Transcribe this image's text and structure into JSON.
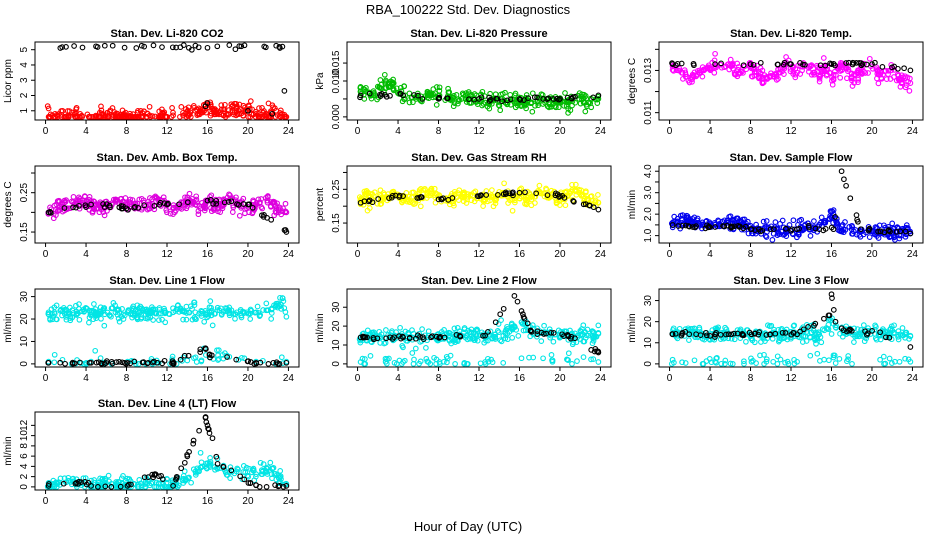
{
  "figure": {
    "title": "RBA_100222  Std. Dev. Diagnostics",
    "xlabel": "Hour of Day (UTC)"
  },
  "chart_data": [
    {
      "type": "scatter",
      "title": "Stan. Dev. Li-820 CO2",
      "ylabel": "Licor ppm",
      "xlim": [
        0,
        24
      ],
      "ylim": [
        0.6,
        5.3
      ],
      "xticks": [
        0,
        4,
        8,
        12,
        16,
        20,
        24
      ],
      "yticks": [
        1,
        2,
        3,
        4,
        5
      ],
      "series": [
        {
          "color": "#ff0000",
          "n": 300,
          "x_points": [
            0.3,
            1.6,
            2.3,
            3.4,
            4.5,
            5.8,
            6.9,
            8.1,
            9.2,
            10.3,
            11.5,
            12.6,
            13.8,
            14.3,
            14.8,
            15.3,
            15.8,
            16.2,
            16.6,
            17.2,
            18.0,
            18.9,
            19.9,
            20.8,
            21.9,
            22.8,
            23.8
          ],
          "y_points": [
            0.6,
            0.6,
            0.6,
            0.6,
            0.6,
            0.6,
            0.6,
            0.6,
            0.6,
            0.7,
            0.7,
            0.7,
            0.8,
            0.9,
            1.0,
            1.1,
            1.3,
            1.2,
            1.0,
            0.9,
            0.8,
            1.2,
            1.0,
            0.8,
            0.7,
            1.0,
            0.6
          ]
        },
        {
          "color": "#000000",
          "n": 35,
          "x_points": [
            23.4,
            23.6,
            16.0,
            15.8,
            20.0,
            22.4
          ],
          "y_points": [
            5.2,
            2.3,
            1.5,
            1.3,
            1.0,
            0.8
          ]
        }
      ]
    },
    {
      "type": "scatter",
      "title": "Stan. Dev. Li-820 Pressure",
      "ylabel": "kPa",
      "xlim": [
        0,
        24
      ],
      "ylim": [
        0,
        0.02
      ],
      "xticks": [
        0,
        4,
        8,
        12,
        16,
        20,
        24
      ],
      "yticks": [
        0.0,
        0.005,
        0.01,
        0.015
      ],
      "ytick_labels": [
        "0.000",
        "",
        "0.010",
        "0.015"
      ],
      "series": [
        {
          "color": "#00bb00",
          "n": 300,
          "x_points": [
            0.3,
            1.6,
            2.3,
            3.4,
            4.5,
            5.8,
            6.9,
            8.1,
            9.2,
            10.3,
            11.5,
            12.6,
            13.8,
            14.3,
            14.8,
            15.3,
            15.8,
            16.2,
            16.6,
            17.2,
            18.0,
            18.9,
            19.9,
            20.8,
            21.9,
            22.8,
            23.8
          ],
          "y_points": [
            0.007,
            0.006,
            0.008,
            0.009,
            0.006,
            0.005,
            0.006,
            0.006,
            0.005,
            0.005,
            0.005,
            0.004,
            0.005,
            0.005,
            0.004,
            0.005,
            0.004,
            0.004,
            0.004,
            0.004,
            0.005,
            0.004,
            0.004,
            0.004,
            0.005,
            0.004,
            0.005
          ]
        },
        {
          "color": "#000000",
          "n": 45,
          "x_points": [
            0.3,
            4.5,
            8.0,
            12.0,
            16.0,
            20.0,
            23.8
          ],
          "y_points": [
            0.006,
            0.006,
            0.005,
            0.005,
            0.005,
            0.005,
            0.006
          ]
        }
      ]
    },
    {
      "type": "scatter",
      "title": "Stan. Dev. Li-820 Temp.",
      "ylabel": "degrees C",
      "xlim": [
        0,
        24
      ],
      "ylim": [
        0.0108,
        0.0142
      ],
      "xticks": [
        0,
        4,
        8,
        12,
        16,
        20,
        24
      ],
      "yticks": [
        0.011,
        0.012,
        0.013,
        0.014
      ],
      "ytick_labels": [
        "0.011",
        "",
        "0.013",
        ""
      ],
      "series": [
        {
          "color": "#ff00ff",
          "n": 300,
          "x_points": [
            0.3,
            1.6,
            2.3,
            3.4,
            4.5,
            5.8,
            6.9,
            8.1,
            9.2,
            10.3,
            11.5,
            12.6,
            13.8,
            14.3,
            14.8,
            15.3,
            15.8,
            16.2,
            16.6,
            17.2,
            18.0,
            18.9,
            19.9,
            20.8,
            21.9,
            22.8,
            23.8
          ],
          "y_points": [
            0.0132,
            0.0127,
            0.0128,
            0.013,
            0.0132,
            0.0133,
            0.0129,
            0.0131,
            0.0126,
            0.0127,
            0.0133,
            0.0129,
            0.0132,
            0.0128,
            0.0127,
            0.0132,
            0.0129,
            0.0126,
            0.0131,
            0.0133,
            0.0127,
            0.0129,
            0.0132,
            0.0128,
            0.013,
            0.0126,
            0.0124
          ]
        },
        {
          "color": "#000000",
          "n": 40,
          "x_points": [
            0.3,
            4.5,
            8.0,
            12.0,
            16.0,
            20.0,
            23.8
          ],
          "y_points": [
            0.0133,
            0.0133,
            0.0133,
            0.0133,
            0.0133,
            0.0133,
            0.013
          ]
        }
      ]
    },
    {
      "type": "scatter",
      "title": "Stan. Dev. Amb. Box Temp.",
      "ylabel": "degrees C",
      "xlim": [
        0,
        24
      ],
      "ylim": [
        0.13,
        0.31
      ],
      "xticks": [
        0,
        4,
        8,
        12,
        16,
        20,
        24
      ],
      "yticks": [
        0.15,
        0.2,
        0.25,
        0.3
      ],
      "ytick_labels": [
        "0.15",
        "",
        "0.25",
        ""
      ],
      "series": [
        {
          "color": "#dd00dd",
          "n": 320,
          "x_points": [
            0.3,
            1.6,
            2.3,
            3.4,
            4.5,
            5.8,
            6.9,
            8.1,
            9.2,
            10.3,
            11.5,
            12.6,
            13.8,
            14.3,
            14.8,
            15.3,
            15.8,
            16.2,
            16.6,
            17.2,
            18.0,
            18.9,
            19.9,
            20.8,
            21.9,
            22.8,
            23.8
          ],
          "y_points": [
            0.2,
            0.22,
            0.21,
            0.23,
            0.22,
            0.21,
            0.23,
            0.22,
            0.21,
            0.22,
            0.23,
            0.21,
            0.22,
            0.23,
            0.22,
            0.21,
            0.22,
            0.23,
            0.21,
            0.22,
            0.23,
            0.22,
            0.21,
            0.22,
            0.23,
            0.21,
            0.2
          ]
        },
        {
          "color": "#000000",
          "n": 50,
          "x_points": [
            0.3,
            4.5,
            8.0,
            12.0,
            16.0,
            20.0,
            23.8
          ],
          "y_points": [
            0.2,
            0.22,
            0.21,
            0.22,
            0.23,
            0.22,
            0.15
          ]
        }
      ]
    },
    {
      "type": "scatter",
      "title": "Stan. Dev. Gas Stream RH",
      "ylabel": "percent",
      "xlim": [
        0,
        24
      ],
      "ylim": [
        0.1,
        0.31
      ],
      "xticks": [
        0,
        4,
        8,
        12,
        16,
        20,
        24
      ],
      "yticks": [
        0.15,
        0.2,
        0.25,
        0.3
      ],
      "ytick_labels": [
        "0.15",
        "",
        "0.25",
        ""
      ],
      "series": [
        {
          "color": "#ffff00",
          "n": 320,
          "x_points": [
            0.3,
            1.6,
            2.3,
            3.4,
            4.5,
            5.8,
            6.9,
            8.1,
            9.2,
            10.3,
            11.5,
            12.6,
            13.8,
            14.3,
            14.8,
            15.3,
            15.8,
            16.2,
            16.6,
            17.2,
            18.0,
            18.9,
            19.9,
            20.8,
            21.9,
            22.8,
            23.8
          ],
          "y_points": [
            0.22,
            0.23,
            0.22,
            0.24,
            0.23,
            0.22,
            0.24,
            0.23,
            0.22,
            0.23,
            0.24,
            0.22,
            0.23,
            0.24,
            0.23,
            0.22,
            0.23,
            0.24,
            0.22,
            0.23,
            0.24,
            0.23,
            0.22,
            0.23,
            0.24,
            0.22,
            0.21
          ]
        },
        {
          "color": "#000000",
          "n": 50,
          "x_points": [
            0.3,
            4.5,
            8.0,
            12.0,
            16.0,
            20.0,
            23.8
          ],
          "y_points": [
            0.21,
            0.23,
            0.22,
            0.23,
            0.24,
            0.23,
            0.19
          ]
        }
      ]
    },
    {
      "type": "scatter",
      "title": "Stan. Dev. Sample Flow",
      "ylabel": "ml/min",
      "xlim": [
        0,
        24
      ],
      "ylim": [
        0.8,
        4.1
      ],
      "xticks": [
        0,
        4,
        8,
        12,
        16,
        20,
        24
      ],
      "yticks": [
        1.0,
        1.5,
        2.0,
        2.5,
        3.0,
        3.5,
        4.0
      ],
      "ytick_labels": [
        "1.0",
        "",
        "2.0",
        "",
        "3.0",
        "",
        "4.0"
      ],
      "series": [
        {
          "color": "#0000ee",
          "n": 320,
          "x_points": [
            0.3,
            1.2,
            2.3,
            3.4,
            4.5,
            5.8,
            6.9,
            7.6,
            8.1,
            9.2,
            10.3,
            11.5,
            12.6,
            13.8,
            14.3,
            14.8,
            15.3,
            15.8,
            16.2,
            16.6,
            17.2,
            18.0,
            18.9,
            19.9,
            20.8,
            21.9,
            22.8,
            23.8
          ],
          "y_points": [
            1.6,
            1.8,
            1.6,
            1.5,
            1.5,
            1.6,
            1.5,
            1.4,
            1.3,
            1.3,
            1.3,
            1.2,
            1.3,
            1.3,
            1.4,
            1.5,
            1.6,
            1.8,
            2.0,
            1.4,
            1.3,
            1.3,
            1.2,
            1.2,
            1.1,
            1.1,
            1.2,
            1.1
          ]
        },
        {
          "color": "#000000",
          "n": 60,
          "x_points": [
            0.3,
            2.3,
            4.5,
            6.9,
            8.1,
            10.3,
            12.6,
            14.8,
            16.2,
            17.0,
            18.9,
            20.8,
            22.8,
            23.8
          ],
          "y_points": [
            1.5,
            1.4,
            1.4,
            1.4,
            1.3,
            1.3,
            1.3,
            1.3,
            1.3,
            4.0,
            1.3,
            1.2,
            1.2,
            1.1
          ]
        }
      ]
    },
    {
      "type": "scatter",
      "title": "Stan. Dev. Line 1 Flow",
      "ylabel": "ml/min",
      "xlim": [
        0,
        24
      ],
      "ylim": [
        0,
        32
      ],
      "xticks": [
        0,
        4,
        8,
        12,
        16,
        20,
        24
      ],
      "yticks": [
        0,
        10,
        20,
        30
      ],
      "series": [
        {
          "color": "#00e5e5",
          "n": 300,
          "x_points": [
            0.3,
            2.3,
            4.5,
            6.9,
            8.1,
            10.3,
            12.6,
            14.8,
            16.2,
            18.9,
            20.8,
            22.0,
            22.8,
            23.5,
            23.8
          ],
          "y_points": [
            23,
            23,
            23,
            23,
            23,
            23,
            23,
            23,
            23,
            23,
            23,
            24,
            26,
            28,
            21
          ]
        },
        {
          "color": "#00e5e5",
          "n": 60,
          "x_points": [
            0.3,
            4.5,
            8.1,
            12.6,
            16.2,
            17.5,
            20.8,
            23.8
          ],
          "y_points": [
            1,
            1,
            1,
            1,
            3,
            4,
            1,
            1
          ]
        },
        {
          "color": "#000000",
          "n": 60,
          "x_points": [
            0.3,
            4.5,
            8.1,
            12.6,
            15.8,
            16.2,
            20.8,
            23.8
          ],
          "y_points": [
            0.5,
            0.5,
            0.5,
            0.5,
            7,
            4,
            0.5,
            0.5
          ]
        }
      ]
    },
    {
      "type": "scatter",
      "title": "Stan. Dev. Line 2 Flow",
      "ylabel": "ml/min",
      "xlim": [
        0,
        24
      ],
      "ylim": [
        0,
        38
      ],
      "xticks": [
        0,
        4,
        8,
        12,
        16,
        20,
        24
      ],
      "yticks": [
        0,
        10,
        20,
        30
      ],
      "series": [
        {
          "color": "#00e5e5",
          "n": 300,
          "x_points": [
            0.3,
            2.3,
            4.5,
            6.9,
            8.1,
            10.3,
            12.6,
            14.8,
            15.5,
            16.2,
            17.2,
            18.9,
            20.8,
            22.8,
            23.8
          ],
          "y_points": [
            14,
            14,
            14,
            14,
            14,
            15,
            15,
            16,
            20,
            22,
            17,
            16,
            15,
            15,
            16
          ]
        },
        {
          "color": "#00e5e5",
          "n": 60,
          "x_points": [
            0.3,
            4.5,
            8.1,
            12.6,
            16.2,
            20.8,
            23.8
          ],
          "y_points": [
            1,
            1,
            1,
            1,
            3,
            2,
            1
          ]
        },
        {
          "color": "#000000",
          "n": 60,
          "x_points": [
            0.3,
            4.5,
            8.1,
            12.6,
            15.5,
            15.8,
            16.2,
            16.5,
            17.2,
            20.8,
            23.8
          ],
          "y_points": [
            14,
            14,
            14,
            15,
            36,
            33,
            28,
            24,
            17,
            15,
            6
          ]
        }
      ]
    },
    {
      "type": "scatter",
      "title": "Stan. Dev. Line 3 Flow",
      "ylabel": "ml/min",
      "xlim": [
        0,
        24
      ],
      "ylim": [
        0,
        34
      ],
      "xticks": [
        0,
        4,
        8,
        12,
        16,
        20,
        24
      ],
      "yticks": [
        0,
        10,
        20,
        30
      ],
      "series": [
        {
          "color": "#00e5e5",
          "n": 300,
          "x_points": [
            0.3,
            2.3,
            4.5,
            6.9,
            8.1,
            10.3,
            12.6,
            14.8,
            15.5,
            16.2,
            17.2,
            18.9,
            20.8,
            22.8,
            23.8
          ],
          "y_points": [
            14,
            14,
            14,
            14,
            14,
            14,
            14,
            14,
            17,
            19,
            15,
            14,
            15,
            14,
            13
          ]
        },
        {
          "color": "#00e5e5",
          "n": 60,
          "x_points": [
            0.3,
            4.5,
            8.1,
            12.6,
            16.2,
            20.8,
            23.8
          ],
          "y_points": [
            2,
            1,
            1,
            1,
            3,
            2,
            1
          ]
        },
        {
          "color": "#000000",
          "n": 60,
          "x_points": [
            0.3,
            4.5,
            8.1,
            12.6,
            15.8,
            16.0,
            16.4,
            17.2,
            20.8,
            23.8
          ],
          "y_points": [
            14,
            14,
            14,
            14,
            23,
            33,
            20,
            16,
            15,
            8
          ]
        }
      ]
    },
    {
      "type": "scatter",
      "title": "Stan. Dev. Line 4 (LT) Flow",
      "ylabel": "ml/min",
      "xlim": [
        0,
        24
      ],
      "ylim": [
        0,
        14
      ],
      "xticks": [
        0,
        4,
        8,
        12,
        16,
        20,
        24
      ],
      "yticks": [
        0,
        2,
        4,
        6,
        8,
        10,
        12
      ],
      "series": [
        {
          "color": "#00e5e5",
          "n": 260,
          "x_points": [
            0.3,
            2.3,
            4.5,
            6.9,
            8.1,
            10.3,
            12.6,
            13.8,
            14.8,
            15.5,
            16.2,
            17.0,
            17.8,
            18.9,
            20.8,
            22.4,
            23.8
          ],
          "y_points": [
            0.4,
            1.2,
            0.5,
            0.3,
            0.3,
            0.3,
            0.5,
            1.5,
            3.0,
            4.0,
            4.5,
            3.5,
            2.8,
            3.0,
            2.5,
            3.5,
            0.5
          ]
        },
        {
          "color": "#000000",
          "n": 55,
          "x_points": [
            0.3,
            3.9,
            4.5,
            8.1,
            10.8,
            12.6,
            15.8,
            16.0,
            16.2,
            16.5,
            17.0,
            20.8,
            23.8
          ],
          "y_points": [
            0.2,
            1.0,
            0.2,
            0.2,
            2.5,
            0.2,
            13.5,
            12.0,
            10.5,
            9.5,
            4.5,
            0.3,
            0.2
          ]
        }
      ]
    }
  ]
}
